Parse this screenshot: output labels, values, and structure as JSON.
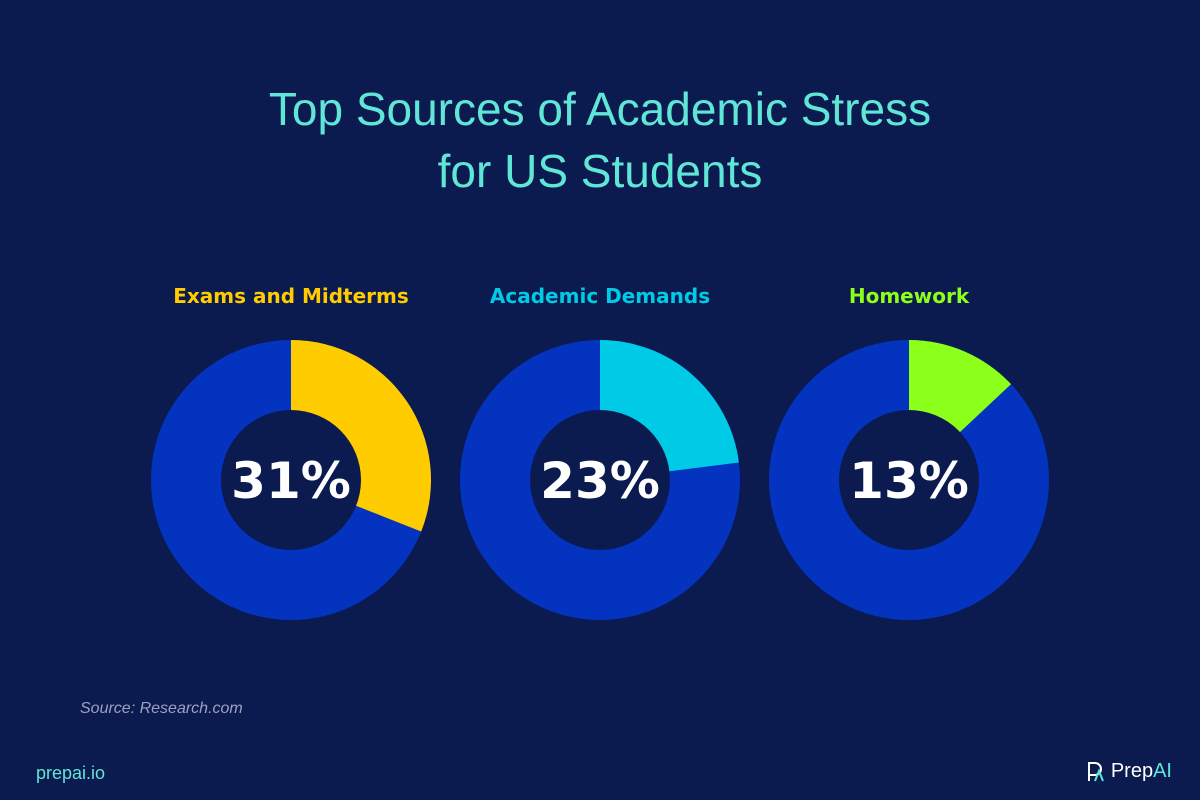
{
  "chart_data": [
    {
      "type": "pie",
      "title": "Exams and Midterms",
      "value": 31,
      "label": "31%",
      "color": "#ffcc00"
    },
    {
      "type": "pie",
      "title": "Academic Demands",
      "value": 23,
      "label": "23%",
      "color": "#00cbe6"
    },
    {
      "type": "pie",
      "title": "Homework",
      "value": 13,
      "label": "13%",
      "color": "#8cff1a"
    }
  ],
  "header": {
    "title_line1": "Top Sources of Academic Stress",
    "title_line2": "for US Students"
  },
  "colors": {
    "background": "#0b1a4f",
    "remainder": "#0433bf",
    "title": "#5fe6d6"
  },
  "footer": {
    "source": "Source: Research.com",
    "site": "prepai.io",
    "brand_prefix": "Prep",
    "brand_suffix": "AI"
  }
}
